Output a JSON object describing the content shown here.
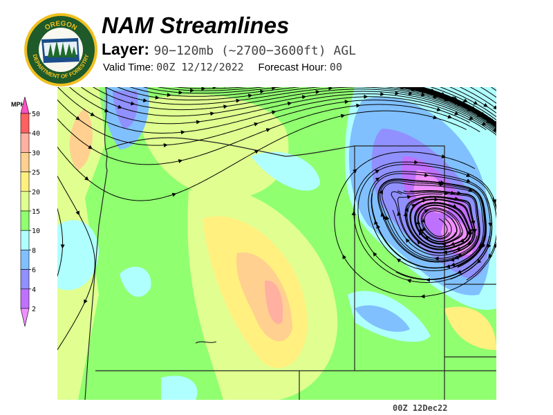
{
  "logo": {
    "text_top": "OREGON",
    "text_bottom": "DEPARTMENT OF FORESTRY"
  },
  "header": {
    "title": "NAM Streamlines",
    "layer_label": "Layer:",
    "layer_value": "90−120mb (~2700−3600ft) AGL",
    "valid_label": "Valid Time:",
    "valid_value": "00Z 12/12/2022",
    "forecast_label": "Forecast Hour:",
    "forecast_value": "00"
  },
  "colorbar": {
    "unit": "MPH",
    "over_color": "#ff50c0",
    "under_color": "#f090ff",
    "bands": [
      {
        "label": "50",
        "color": "#ff6060"
      },
      {
        "label": "40",
        "color": "#ffb0a0"
      },
      {
        "label": "30",
        "color": "#ffd090"
      },
      {
        "label": "25",
        "color": "#fff080"
      },
      {
        "label": "20",
        "color": "#e0ff90"
      },
      {
        "label": "15",
        "color": "#90ff70"
      },
      {
        "label": "10",
        "color": "#b0ffff"
      },
      {
        "label": "8",
        "color": "#80c0ff"
      },
      {
        "label": "6",
        "color": "#9090ff"
      },
      {
        "label": "4",
        "color": "#c070ff"
      }
    ],
    "bottom_label": "2"
  },
  "footer": {
    "timestamp": "00Z 12Dec22"
  }
}
